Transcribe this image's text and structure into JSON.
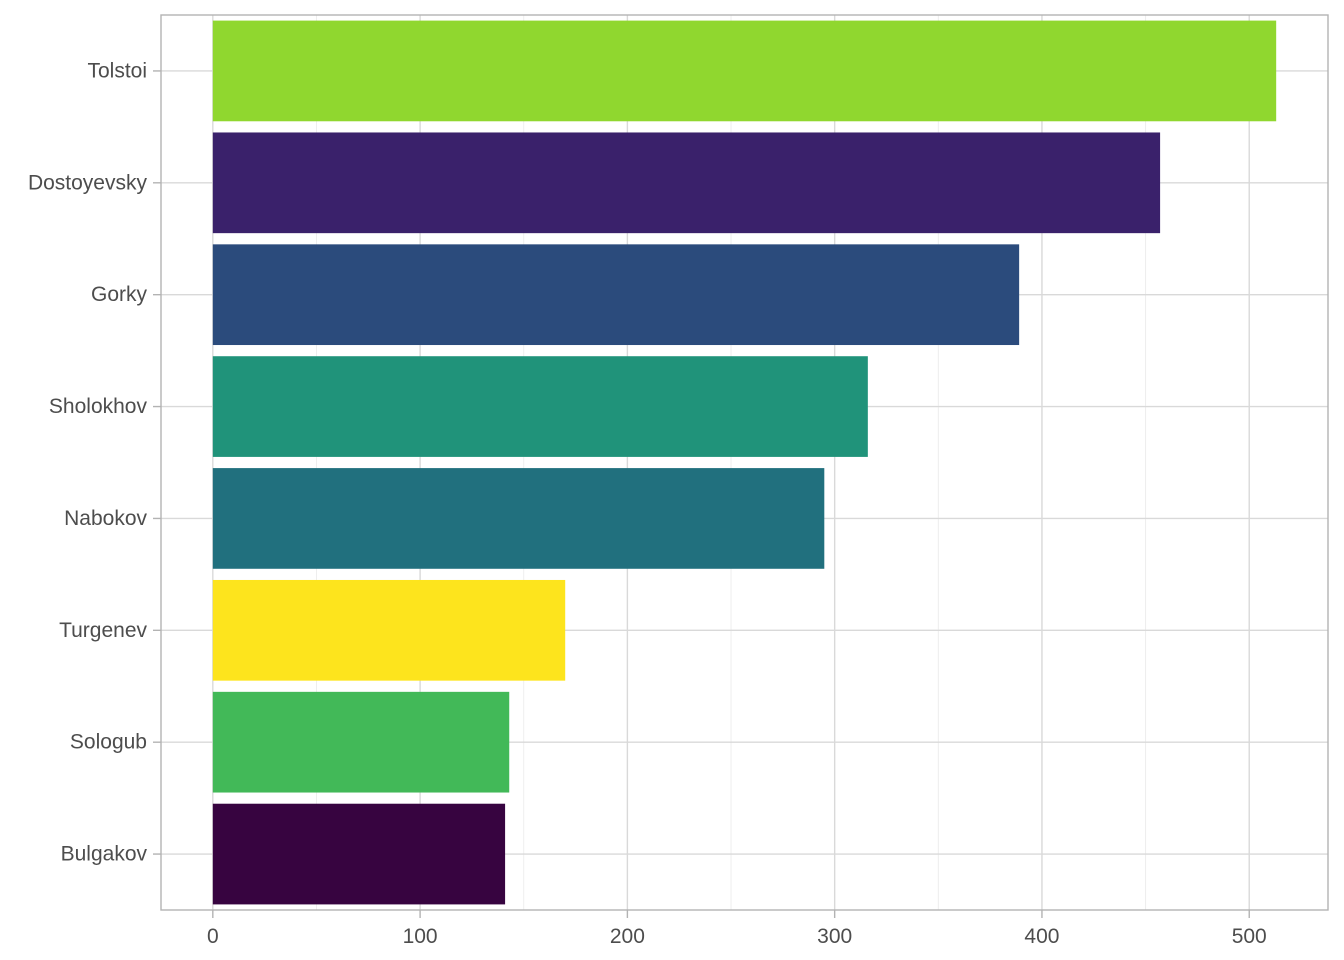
{
  "chart_data": {
    "type": "bar",
    "orientation": "horizontal",
    "title": "",
    "xlabel": "",
    "ylabel": "",
    "categories": [
      "Tolstoi",
      "Dostoyevsky",
      "Gorky",
      "Sholokhov",
      "Nabokov",
      "Turgenev",
      "Sologub",
      "Bulgakov"
    ],
    "values": [
      513,
      457,
      389,
      316,
      295,
      170,
      143,
      141
    ],
    "colors": [
      "#90d72f",
      "#3a216b",
      "#2b4b7c",
      "#20937a",
      "#21707e",
      "#fde41d",
      "#42b958",
      "#370440"
    ],
    "xlim": [
      -25,
      538
    ],
    "x_ticks": [
      0,
      100,
      200,
      300,
      400,
      500
    ],
    "x_tick_labels": [
      "0",
      "100",
      "200",
      "300",
      "400",
      "500"
    ],
    "grid": true,
    "legend": "none"
  }
}
